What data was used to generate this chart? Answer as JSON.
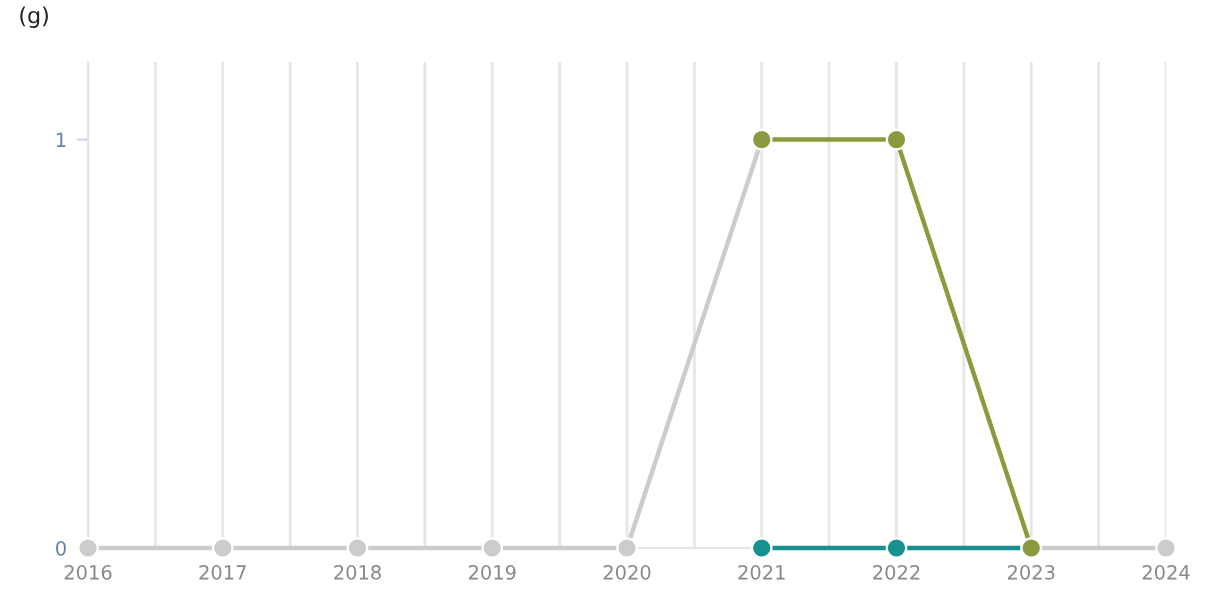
{
  "chart_data": {
    "type": "line",
    "ylabel": "(g)",
    "x": [
      2016,
      2017,
      2018,
      2019,
      2020,
      2021,
      2022,
      2023,
      2024
    ],
    "series": [
      {
        "color": "#cccccc",
        "values": [
          0,
          0,
          0,
          0,
          0,
          1,
          null,
          0,
          0
        ]
      },
      {
        "color": "#17918f",
        "values": [
          null,
          null,
          null,
          null,
          null,
          0,
          0,
          0,
          null
        ]
      },
      {
        "color": "#8a9a3f",
        "values": [
          null,
          null,
          null,
          null,
          null,
          1,
          1,
          0,
          null
        ]
      }
    ],
    "xlim": [
      2016,
      2024
    ],
    "ylim": [
      0,
      1.19
    ],
    "xticks": [
      2016,
      {
        "value": 2016.5,
        "label": null
      },
      2017,
      {
        "value": 2017.5,
        "label": null
      },
      2018,
      {
        "value": 2018.5,
        "label": null
      },
      2019,
      {
        "value": 2019.5,
        "label": null
      },
      2020,
      {
        "value": 2020.5,
        "label": null
      },
      2021,
      {
        "value": 2021.5,
        "label": null
      },
      2022,
      {
        "value": 2022.5,
        "label": null
      },
      2023,
      {
        "value": 2023.5,
        "label": null
      },
      2024
    ],
    "yticks": [
      0,
      1
    ],
    "grid": "x",
    "marker": "circle",
    "line_style": "solid"
  }
}
